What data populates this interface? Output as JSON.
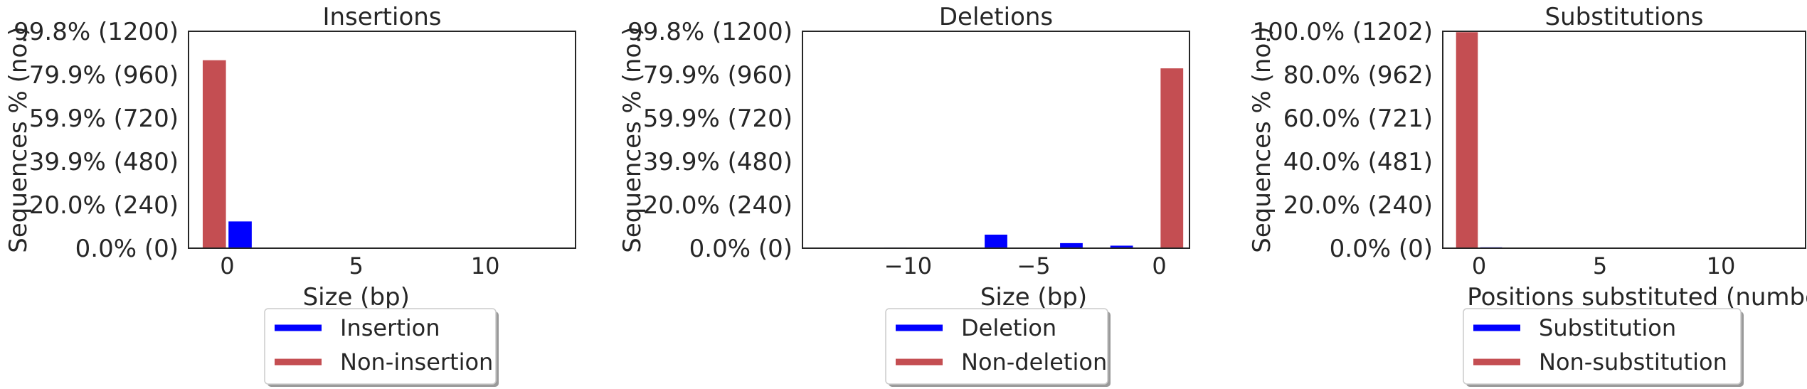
{
  "colors": {
    "event": "#0000ff",
    "non_event": "#c44e52",
    "axis": "#262626",
    "legend_border": "#cccccc"
  },
  "chart_data": [
    {
      "type": "bar",
      "title": "Insertions",
      "xlabel": "Size (bp)",
      "ylabel": "Sequences % (no.)",
      "xlim": [
        -1.5,
        13.5
      ],
      "xticks": [
        0,
        5,
        10
      ],
      "ylim": [
        0,
        1200
      ],
      "yticks": [
        {
          "value": 0,
          "label": "0.0% (0)"
        },
        {
          "value": 240,
          "label": "20.0% (240)"
        },
        {
          "value": 480,
          "label": "39.9% (480)"
        },
        {
          "value": 720,
          "label": "59.9% (720)"
        },
        {
          "value": 960,
          "label": "79.9% (960)"
        },
        {
          "value": 1200,
          "label": "99.8% (1200)"
        }
      ],
      "series": [
        {
          "name": "Insertion",
          "color": "#0000ff",
          "offset": 0.5,
          "points": [
            {
              "x": 0,
              "y": 148
            },
            {
              "x": 1,
              "y": 2
            },
            {
              "x": 2,
              "y": 1
            }
          ]
        },
        {
          "name": "Non-insertion",
          "color": "#c44e52",
          "offset": -0.5,
          "points": [
            {
              "x": 0,
              "y": 1040
            }
          ]
        }
      ],
      "legend": [
        "Insertion",
        "Non-insertion"
      ],
      "legend_position": "below"
    },
    {
      "type": "bar",
      "title": "Deletions",
      "xlabel": "Size (bp)",
      "ylabel": "Sequences % (no.)",
      "xlim": [
        -14.2,
        1.2
      ],
      "xticks": [
        -10,
        -5,
        0
      ],
      "ylim": [
        0,
        1200
      ],
      "yticks": [
        {
          "value": 0,
          "label": "0.0% (0)"
        },
        {
          "value": 240,
          "label": "20.0% (240)"
        },
        {
          "value": 480,
          "label": "39.9% (480)"
        },
        {
          "value": 720,
          "label": "59.9% (720)"
        },
        {
          "value": 960,
          "label": "79.9% (960)"
        },
        {
          "value": 1200,
          "label": "99.8% (1200)"
        }
      ],
      "series": [
        {
          "name": "Deletion",
          "color": "#0000ff",
          "offset": -0.5,
          "points": [
            {
              "x": -13,
              "y": 2
            },
            {
              "x": -12,
              "y": 1
            },
            {
              "x": -10,
              "y": 4
            },
            {
              "x": -9,
              "y": 2
            },
            {
              "x": -6,
              "y": 75
            },
            {
              "x": -3,
              "y": 28
            },
            {
              "x": -1,
              "y": 14
            }
          ]
        },
        {
          "name": "Non-deletion",
          "color": "#c44e52",
          "offset": 0.5,
          "points": [
            {
              "x": 0,
              "y": 995
            }
          ]
        }
      ],
      "legend": [
        "Deletion",
        "Non-deletion"
      ],
      "legend_position": "below"
    },
    {
      "type": "bar",
      "title": "Substitutions",
      "xlabel": "Positions substituted (number)",
      "ylabel": "Sequences % (no.)",
      "xlim": [
        -1.5,
        13.5
      ],
      "xticks": [
        0,
        5,
        10
      ],
      "ylim": [
        0,
        1202
      ],
      "yticks": [
        {
          "value": 0,
          "label": "0.0% (0)"
        },
        {
          "value": 240,
          "label": "20.0% (240)"
        },
        {
          "value": 481,
          "label": "40.0% (481)"
        },
        {
          "value": 721,
          "label": "60.0% (721)"
        },
        {
          "value": 962,
          "label": "80.0% (962)"
        },
        {
          "value": 1202,
          "label": "100.0% (1202)"
        }
      ],
      "series": [
        {
          "name": "Substitution",
          "color": "#0000ff",
          "offset": 0.5,
          "points": [
            {
              "x": 0,
              "y": 5
            }
          ]
        },
        {
          "name": "Non-substitution",
          "color": "#c44e52",
          "offset": -0.5,
          "points": [
            {
              "x": 0,
              "y": 1197
            }
          ]
        }
      ],
      "legend": [
        "Substitution",
        "Non-substitution"
      ],
      "legend_position": "below"
    }
  ]
}
